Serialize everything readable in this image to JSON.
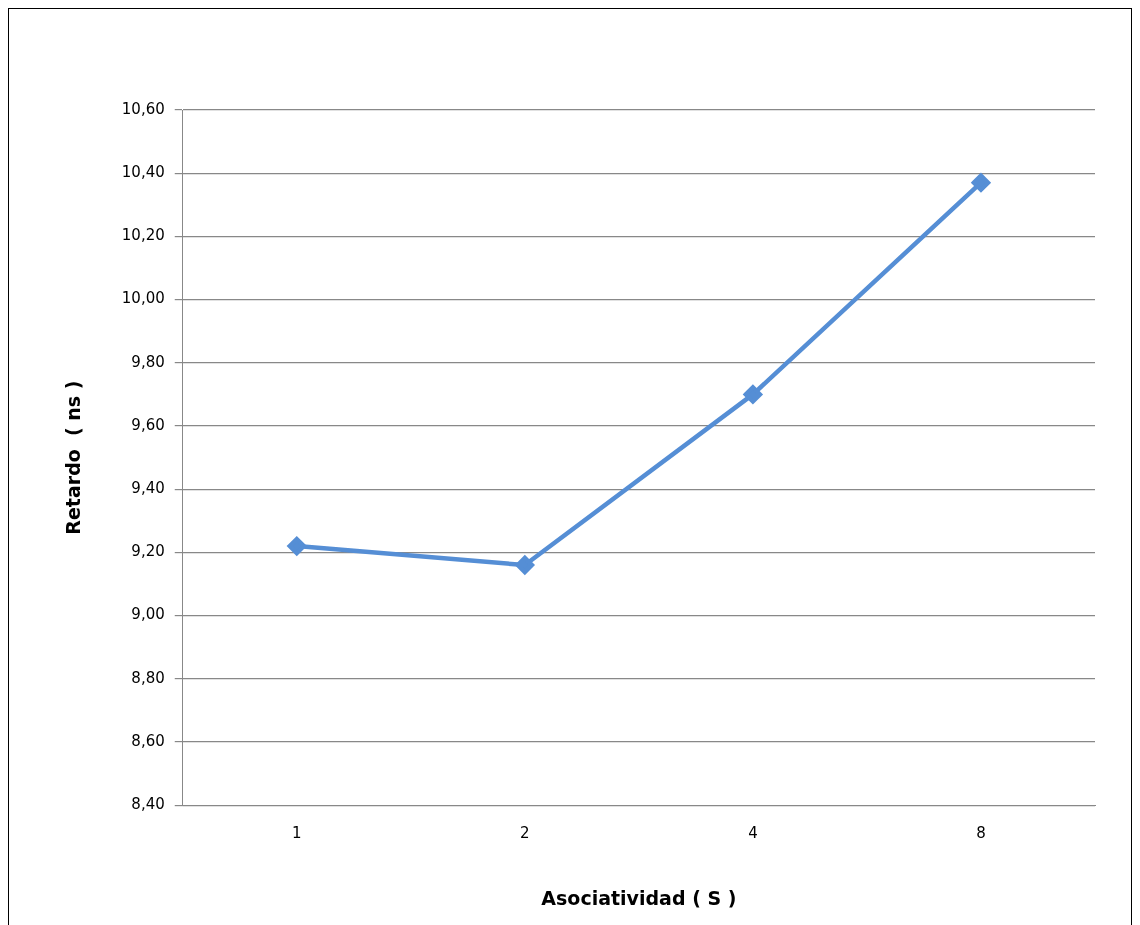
{
  "chart_data": {
    "type": "line",
    "xlabel": "Asociatividad ( S )",
    "ylabel": "Retardo  ( ns )",
    "categories": [
      "1",
      "2",
      "4",
      "8"
    ],
    "series": [
      {
        "color": "#558ed5",
        "values": [
          9.22,
          9.16,
          9.7,
          10.37
        ]
      }
    ],
    "ylim": [
      8.4,
      10.6
    ],
    "yticks": [
      {
        "value": 8.4,
        "label": "8,40"
      },
      {
        "value": 8.6,
        "label": "8,60"
      },
      {
        "value": 8.8,
        "label": "8,80"
      },
      {
        "value": 9.0,
        "label": "9,00"
      },
      {
        "value": 9.2,
        "label": "9,20"
      },
      {
        "value": 9.4,
        "label": "9,40"
      },
      {
        "value": 9.6,
        "label": "9,60"
      },
      {
        "value": 9.8,
        "label": "9,80"
      },
      {
        "value": 10.0,
        "label": "10,00"
      },
      {
        "value": 10.2,
        "label": "10,20"
      },
      {
        "value": 10.4,
        "label": "10,40"
      },
      {
        "value": 10.6,
        "label": "10,60"
      }
    ],
    "grid": "y",
    "legend": false,
    "marker": "diamond",
    "line_style": "solid"
  }
}
